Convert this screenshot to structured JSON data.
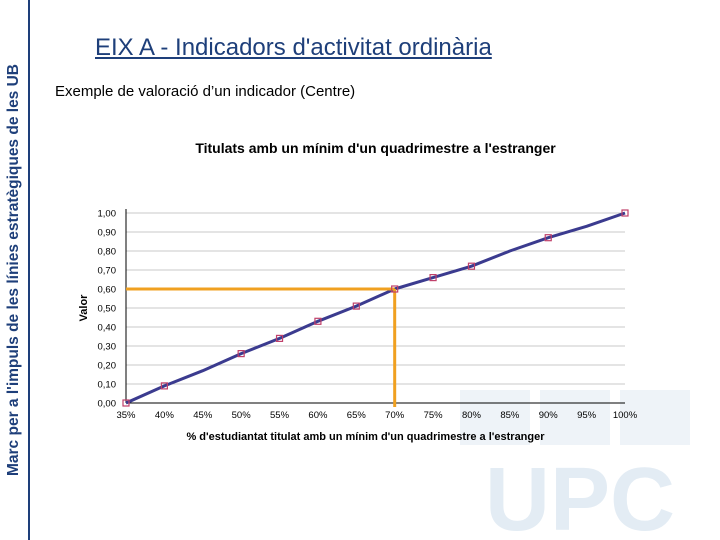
{
  "sidebar": {
    "text": "Marc per a l'impuls de les línies estratègiques de les UB"
  },
  "header": {
    "title": "EIX A - Indicadors d'activitat ordinària"
  },
  "subtitle": "Exemple de valoració d’un indicador (Centre)",
  "watermark": {
    "text": "UPC",
    "color": "#e3ecf4"
  },
  "colors": {
    "accent": "#1e3f7a",
    "line": "#3b3b8f",
    "marker": "#c0406a",
    "highlight": "#f0a020"
  },
  "chart_data": {
    "type": "line",
    "title": "Titulats amb un mínim d'un quadrimestre a l'estranger",
    "xlabel": "% d'estudiantat titulat amb un mínim d'un quadrimestre a l'estranger",
    "ylabel": "Valor",
    "x_ticks": [
      "35%",
      "40%",
      "45%",
      "50%",
      "55%",
      "60%",
      "65%",
      "70%",
      "75%",
      "80%",
      "85%",
      "90%",
      "95%",
      "100%"
    ],
    "y_ticks": [
      "0,00",
      "0,10",
      "0,20",
      "0,30",
      "0,40",
      "0,50",
      "0,60",
      "0,70",
      "0,80",
      "0,90",
      "1,00"
    ],
    "xlim": [
      35,
      100
    ],
    "ylim": [
      0,
      1
    ],
    "grid": true,
    "series": [
      {
        "x": [
          35,
          40,
          45,
          50,
          55,
          60,
          65,
          70,
          75,
          80,
          85,
          90,
          95,
          100
        ],
        "values": [
          0.0,
          0.09,
          0.17,
          0.26,
          0.34,
          0.43,
          0.51,
          0.6,
          0.66,
          0.72,
          0.8,
          0.87,
          0.93,
          1.0
        ]
      }
    ],
    "markers_x": [
      35,
      40,
      50,
      55,
      60,
      65,
      70,
      75,
      80,
      90,
      100
    ],
    "highlight": {
      "x": 70,
      "y": 0.6
    }
  }
}
